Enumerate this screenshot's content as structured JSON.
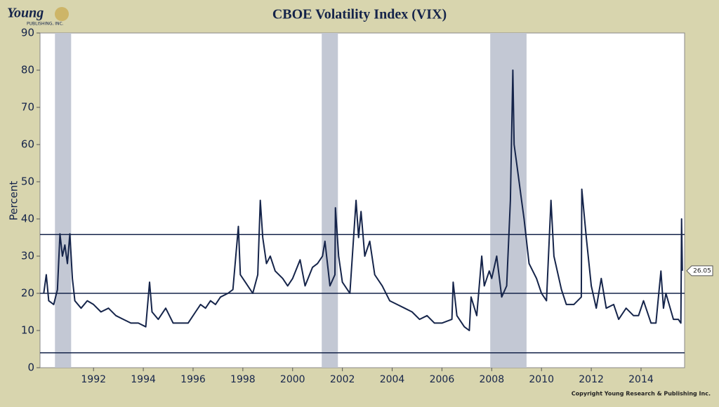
{
  "logo": {
    "name": "Young",
    "subtitle": "PUBLISHING, INC."
  },
  "copyright": "Copyright Young Research & Publishing Inc.",
  "chart_data": {
    "type": "line",
    "title": "CBOE Volatility Index (VIX)",
    "y_label": "Percent",
    "color": "#15244a",
    "xlim": [
      1989.85,
      2015.75
    ],
    "xticks": [
      1992,
      1994,
      1996,
      1998,
      2000,
      2002,
      2004,
      2006,
      2008,
      2010,
      2012,
      2014
    ],
    "ylim": [
      0,
      90
    ],
    "yticks": [
      0,
      10,
      20,
      30,
      40,
      50,
      60,
      70,
      80,
      90
    ],
    "shaded_ranges": [
      [
        1990.45,
        1991.1
      ],
      [
        2001.17,
        2001.82
      ],
      [
        2007.94,
        2009.4
      ]
    ],
    "shade_color": "#c3c8d4",
    "reference_lines": [
      35.8,
      20,
      4
    ],
    "x": [
      1990.0,
      1990.1,
      1990.2,
      1990.4,
      1990.55,
      1990.65,
      1990.75,
      1990.85,
      1990.95,
      1991.05,
      1991.15,
      1991.25,
      1991.5,
      1991.75,
      1992.0,
      1992.3,
      1992.6,
      1992.9,
      1993.2,
      1993.5,
      1993.8,
      1994.1,
      1994.25,
      1994.35,
      1994.6,
      1994.9,
      1995.2,
      1995.5,
      1995.8,
      1996.1,
      1996.3,
      1996.5,
      1996.7,
      1996.9,
      1997.1,
      1997.4,
      1997.6,
      1997.82,
      1997.9,
      1998.1,
      1998.4,
      1998.6,
      1998.7,
      1998.8,
      1998.95,
      1999.1,
      1999.3,
      1999.6,
      1999.8,
      2000.0,
      2000.3,
      2000.5,
      2000.8,
      2001.0,
      2001.2,
      2001.3,
      2001.5,
      2001.7,
      2001.72,
      2001.85,
      2002.0,
      2002.3,
      2002.55,
      2002.65,
      2002.75,
      2002.9,
      2003.1,
      2003.3,
      2003.6,
      2003.9,
      2004.2,
      2004.5,
      2004.8,
      2005.1,
      2005.4,
      2005.7,
      2006.0,
      2006.4,
      2006.45,
      2006.6,
      2006.9,
      2007.1,
      2007.17,
      2007.4,
      2007.6,
      2007.7,
      2007.9,
      2008.0,
      2008.2,
      2008.4,
      2008.6,
      2008.75,
      2008.85,
      2008.9,
      2009.0,
      2009.2,
      2009.3,
      2009.5,
      2009.8,
      2010.0,
      2010.2,
      2010.38,
      2010.5,
      2010.8,
      2011.0,
      2011.3,
      2011.6,
      2011.62,
      2011.8,
      2012.0,
      2012.2,
      2012.4,
      2012.6,
      2012.9,
      2013.1,
      2013.4,
      2013.7,
      2013.9,
      2014.1,
      2014.4,
      2014.6,
      2014.8,
      2014.9,
      2015.0,
      2015.3,
      2015.5,
      2015.6,
      2015.63,
      2015.66
    ],
    "values": [
      20,
      25,
      18,
      17,
      21,
      36,
      30,
      33,
      28,
      36,
      24,
      18,
      16,
      18,
      17,
      15,
      16,
      14,
      13,
      12,
      12,
      11,
      23,
      15,
      13,
      16,
      12,
      12,
      12,
      15,
      17,
      16,
      18,
      17,
      19,
      20,
      21,
      38,
      25,
      23,
      20,
      25,
      45,
      35,
      28,
      30,
      26,
      24,
      22,
      24,
      29,
      22,
      27,
      28,
      30,
      34,
      22,
      25,
      43,
      30,
      23,
      20,
      45,
      35,
      42,
      30,
      34,
      25,
      22,
      18,
      17,
      16,
      15,
      13,
      14,
      12,
      12,
      13,
      23,
      14,
      11,
      10,
      19,
      14,
      30,
      22,
      26,
      24,
      30,
      19,
      22,
      45,
      80,
      60,
      55,
      45,
      40,
      28,
      24,
      20,
      18,
      45,
      30,
      21,
      17,
      17,
      19,
      48,
      35,
      22,
      16,
      24,
      16,
      17,
      13,
      16,
      14,
      14,
      18,
      12,
      12,
      26,
      16,
      20,
      13,
      13,
      12,
      40,
      26.05
    ]
  }
}
